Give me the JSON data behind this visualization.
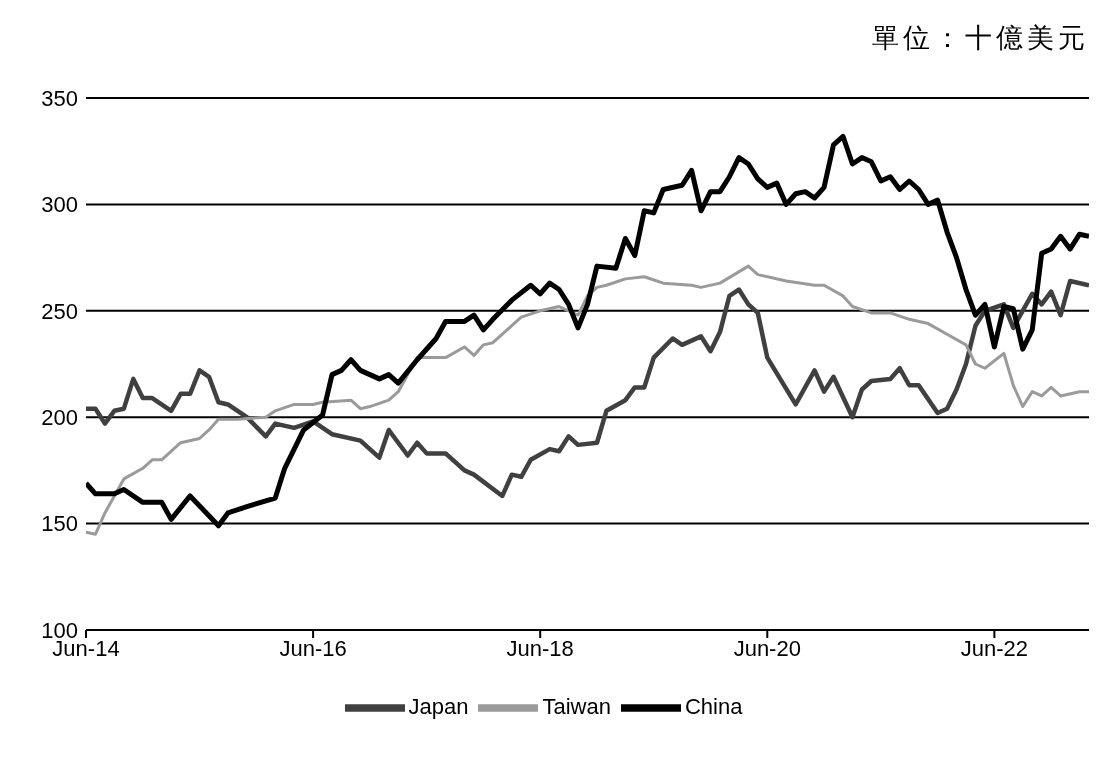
{
  "chart_data": {
    "type": "line",
    "annotations": [
      "單位：十億美元"
    ],
    "xlim": [
      "2014-06",
      "2023-04"
    ],
    "xticks": [
      {
        "value": "2014-06",
        "label": "Jun-14"
      },
      {
        "value": "2016-06",
        "label": "Jun-16"
      },
      {
        "value": "2018-06",
        "label": "Jun-18"
      },
      {
        "value": "2020-06",
        "label": "Jun-20"
      },
      {
        "value": "2022-06",
        "label": "Jun-22"
      }
    ],
    "ylim": [
      100,
      350
    ],
    "yticks": [
      100,
      150,
      200,
      250,
      300,
      350
    ],
    "grid": "y",
    "legend": "bottom",
    "marker": "none",
    "line_style": "solid",
    "series": [
      {
        "name": "Japan",
        "color": "#404040",
        "x": [
          "2014-06",
          "2014-07",
          "2014-08",
          "2014-09",
          "2014-10",
          "2014-11",
          "2014-12",
          "2015-01",
          "2015-03",
          "2015-04",
          "2015-05",
          "2015-06",
          "2015-07",
          "2015-08",
          "2015-09",
          "2015-11",
          "2016-01",
          "2016-02",
          "2016-04",
          "2016-06",
          "2016-08",
          "2016-11",
          "2017-01",
          "2017-02",
          "2017-04",
          "2017-05",
          "2017-06",
          "2017-08",
          "2017-10",
          "2017-11",
          "2018-02",
          "2018-03",
          "2018-04",
          "2018-05",
          "2018-07",
          "2018-08",
          "2018-09",
          "2018-10",
          "2018-12",
          "2019-01",
          "2019-03",
          "2019-04",
          "2019-05",
          "2019-06",
          "2019-08",
          "2019-09",
          "2019-11",
          "2019-12",
          "2020-01",
          "2020-02",
          "2020-03",
          "2020-04",
          "2020-05",
          "2020-06",
          "2020-09",
          "2020-11",
          "2020-12",
          "2021-01",
          "2021-03",
          "2021-04",
          "2021-05",
          "2021-07",
          "2021-08",
          "2021-09",
          "2021-10",
          "2021-12",
          "2022-01",
          "2022-02",
          "2022-03",
          "2022-04",
          "2022-05",
          "2022-07",
          "2022-08",
          "2022-10",
          "2022-11",
          "2022-12",
          "2023-01",
          "2023-02",
          "2023-04"
        ],
        "values": [
          204,
          204,
          197,
          203,
          204,
          218,
          209,
          209,
          203,
          211,
          211,
          222,
          219,
          207,
          206,
          200,
          191,
          197,
          195,
          198,
          192,
          189,
          181,
          194,
          182,
          188,
          183,
          183,
          175,
          173,
          163,
          173,
          172,
          180,
          185,
          184,
          191,
          187,
          188,
          203,
          208,
          214,
          214,
          228,
          237,
          234,
          238,
          231,
          240,
          257,
          260,
          253,
          249,
          228,
          206,
          222,
          212,
          219,
          200,
          213,
          217,
          218,
          223,
          215,
          215,
          202,
          204,
          213,
          225,
          243,
          250,
          253,
          242,
          258,
          253,
          259,
          248,
          264,
          262
        ]
      },
      {
        "name": "Taiwan",
        "color": "#9a9a9a",
        "x": [
          "2014-06",
          "2014-07",
          "2014-08",
          "2014-10",
          "2014-12",
          "2015-01",
          "2015-02",
          "2015-04",
          "2015-06",
          "2015-07",
          "2015-08",
          "2015-10",
          "2016-01",
          "2016-02",
          "2016-04",
          "2016-06",
          "2016-07",
          "2016-10",
          "2016-11",
          "2016-12",
          "2017-02",
          "2017-03",
          "2017-05",
          "2017-07",
          "2017-08",
          "2017-10",
          "2017-11",
          "2017-12",
          "2018-01",
          "2018-03",
          "2018-04",
          "2018-06",
          "2018-08",
          "2018-10",
          "2018-11",
          "2018-12",
          "2019-01",
          "2019-03",
          "2019-05",
          "2019-07",
          "2019-10",
          "2019-11",
          "2020-01",
          "2020-04",
          "2020-05",
          "2020-08",
          "2020-11",
          "2020-12",
          "2021-02",
          "2021-03",
          "2021-05",
          "2021-07",
          "2021-09",
          "2021-11",
          "2022-01",
          "2022-03",
          "2022-04",
          "2022-05",
          "2022-07",
          "2022-08",
          "2022-09",
          "2022-10",
          "2022-11",
          "2022-12",
          "2023-01",
          "2023-03",
          "2023-04"
        ],
        "values": [
          146,
          145,
          155,
          171,
          176,
          180,
          180,
          188,
          190,
          194,
          199,
          199,
          200,
          203,
          206,
          206,
          207,
          208,
          204,
          205,
          208,
          212,
          228,
          228,
          228,
          233,
          229,
          234,
          235,
          243,
          247,
          250,
          252,
          248,
          257,
          261,
          262,
          265,
          266,
          263,
          262,
          261,
          263,
          271,
          267,
          264,
          262,
          262,
          257,
          252,
          249,
          249,
          246,
          244,
          239,
          234,
          225,
          223,
          230,
          215,
          205,
          212,
          210,
          214,
          210,
          212,
          212
        ]
      },
      {
        "name": "China",
        "color": "#000000",
        "x": [
          "2014-06",
          "2014-07",
          "2014-09",
          "2014-10",
          "2014-12",
          "2015-02",
          "2015-03",
          "2015-05",
          "2015-08",
          "2015-09",
          "2015-11",
          "2016-02",
          "2016-03",
          "2016-04",
          "2016-05",
          "2016-07",
          "2016-08",
          "2016-09",
          "2016-10",
          "2016-11",
          "2017-01",
          "2017-02",
          "2017-03",
          "2017-05",
          "2017-07",
          "2017-08",
          "2017-10",
          "2017-11",
          "2017-12",
          "2018-01",
          "2018-03",
          "2018-05",
          "2018-06",
          "2018-07",
          "2018-08",
          "2018-09",
          "2018-10",
          "2018-11",
          "2018-12",
          "2019-02",
          "2019-03",
          "2019-04",
          "2019-05",
          "2019-06",
          "2019-07",
          "2019-09",
          "2019-10",
          "2019-11",
          "2019-12",
          "2020-01",
          "2020-02",
          "2020-03",
          "2020-04",
          "2020-05",
          "2020-06",
          "2020-07",
          "2020-08",
          "2020-09",
          "2020-10",
          "2020-11",
          "2020-12",
          "2021-01",
          "2021-02",
          "2021-03",
          "2021-04",
          "2021-05",
          "2021-06",
          "2021-07",
          "2021-08",
          "2021-09",
          "2021-10",
          "2021-11",
          "2021-12",
          "2022-01",
          "2022-02",
          "2022-03",
          "2022-04",
          "2022-05",
          "2022-06",
          "2022-07",
          "2022-08",
          "2022-09",
          "2022-10",
          "2022-11",
          "2022-12",
          "2023-01",
          "2023-02",
          "2023-03",
          "2023-04"
        ],
        "values": [
          169,
          164,
          164,
          166,
          160,
          160,
          152,
          163,
          149,
          155,
          158,
          162,
          176,
          185,
          194,
          201,
          220,
          222,
          227,
          222,
          218,
          220,
          216,
          227,
          237,
          245,
          245,
          248,
          241,
          246,
          255,
          262,
          258,
          263,
          260,
          253,
          242,
          253,
          271,
          270,
          284,
          276,
          297,
          296,
          307,
          309,
          316,
          297,
          306,
          306,
          313,
          322,
          319,
          312,
          308,
          310,
          300,
          305,
          306,
          303,
          308,
          328,
          332,
          319,
          322,
          320,
          311,
          313,
          307,
          311,
          307,
          300,
          302,
          287,
          275,
          260,
          248,
          253,
          233,
          252,
          251,
          232,
          241,
          277,
          279,
          285,
          279,
          286,
          285
        ]
      }
    ]
  }
}
